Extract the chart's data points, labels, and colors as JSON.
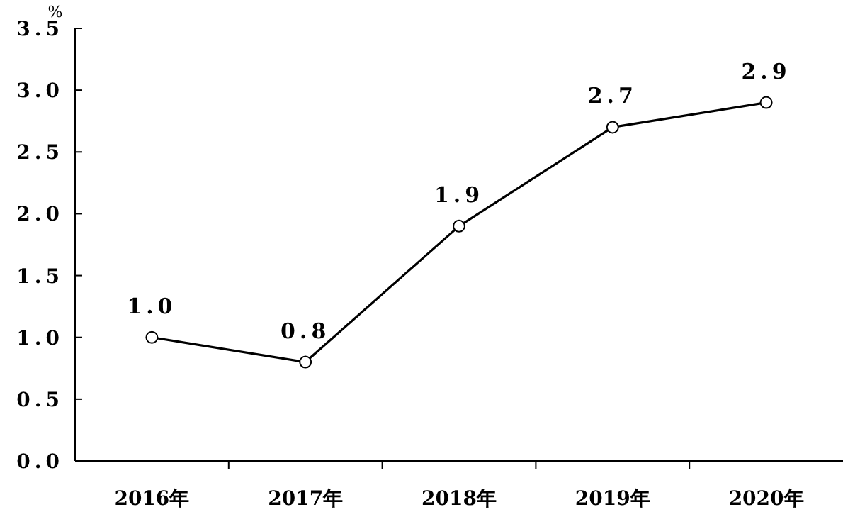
{
  "chart_data": {
    "type": "line",
    "ylabel": "%",
    "categories": [
      "2016年",
      "2017年",
      "2018年",
      "2019年",
      "2020年"
    ],
    "series": [
      {
        "color": "#000000",
        "values": [
          1.0,
          0.8,
          1.9,
          2.7,
          2.9
        ],
        "value_labels": [
          "1.0",
          "0.8",
          "1.9",
          "2.7",
          "2.9"
        ]
      }
    ],
    "ylim": [
      0,
      3.5
    ],
    "yticks": [
      {
        "value": 0,
        "label": "0.0"
      },
      {
        "value": 0.5,
        "label": "0.5"
      },
      {
        "value": 1,
        "label": "1.0"
      },
      {
        "value": 1.5,
        "label": "1.5"
      },
      {
        "value": 2,
        "label": "2.0"
      },
      {
        "value": 2.5,
        "label": "2.5"
      },
      {
        "value": 3,
        "label": "3.0"
      },
      {
        "value": 3.5,
        "label": "3.5"
      }
    ],
    "marker": "circle",
    "line_style": "solid"
  }
}
